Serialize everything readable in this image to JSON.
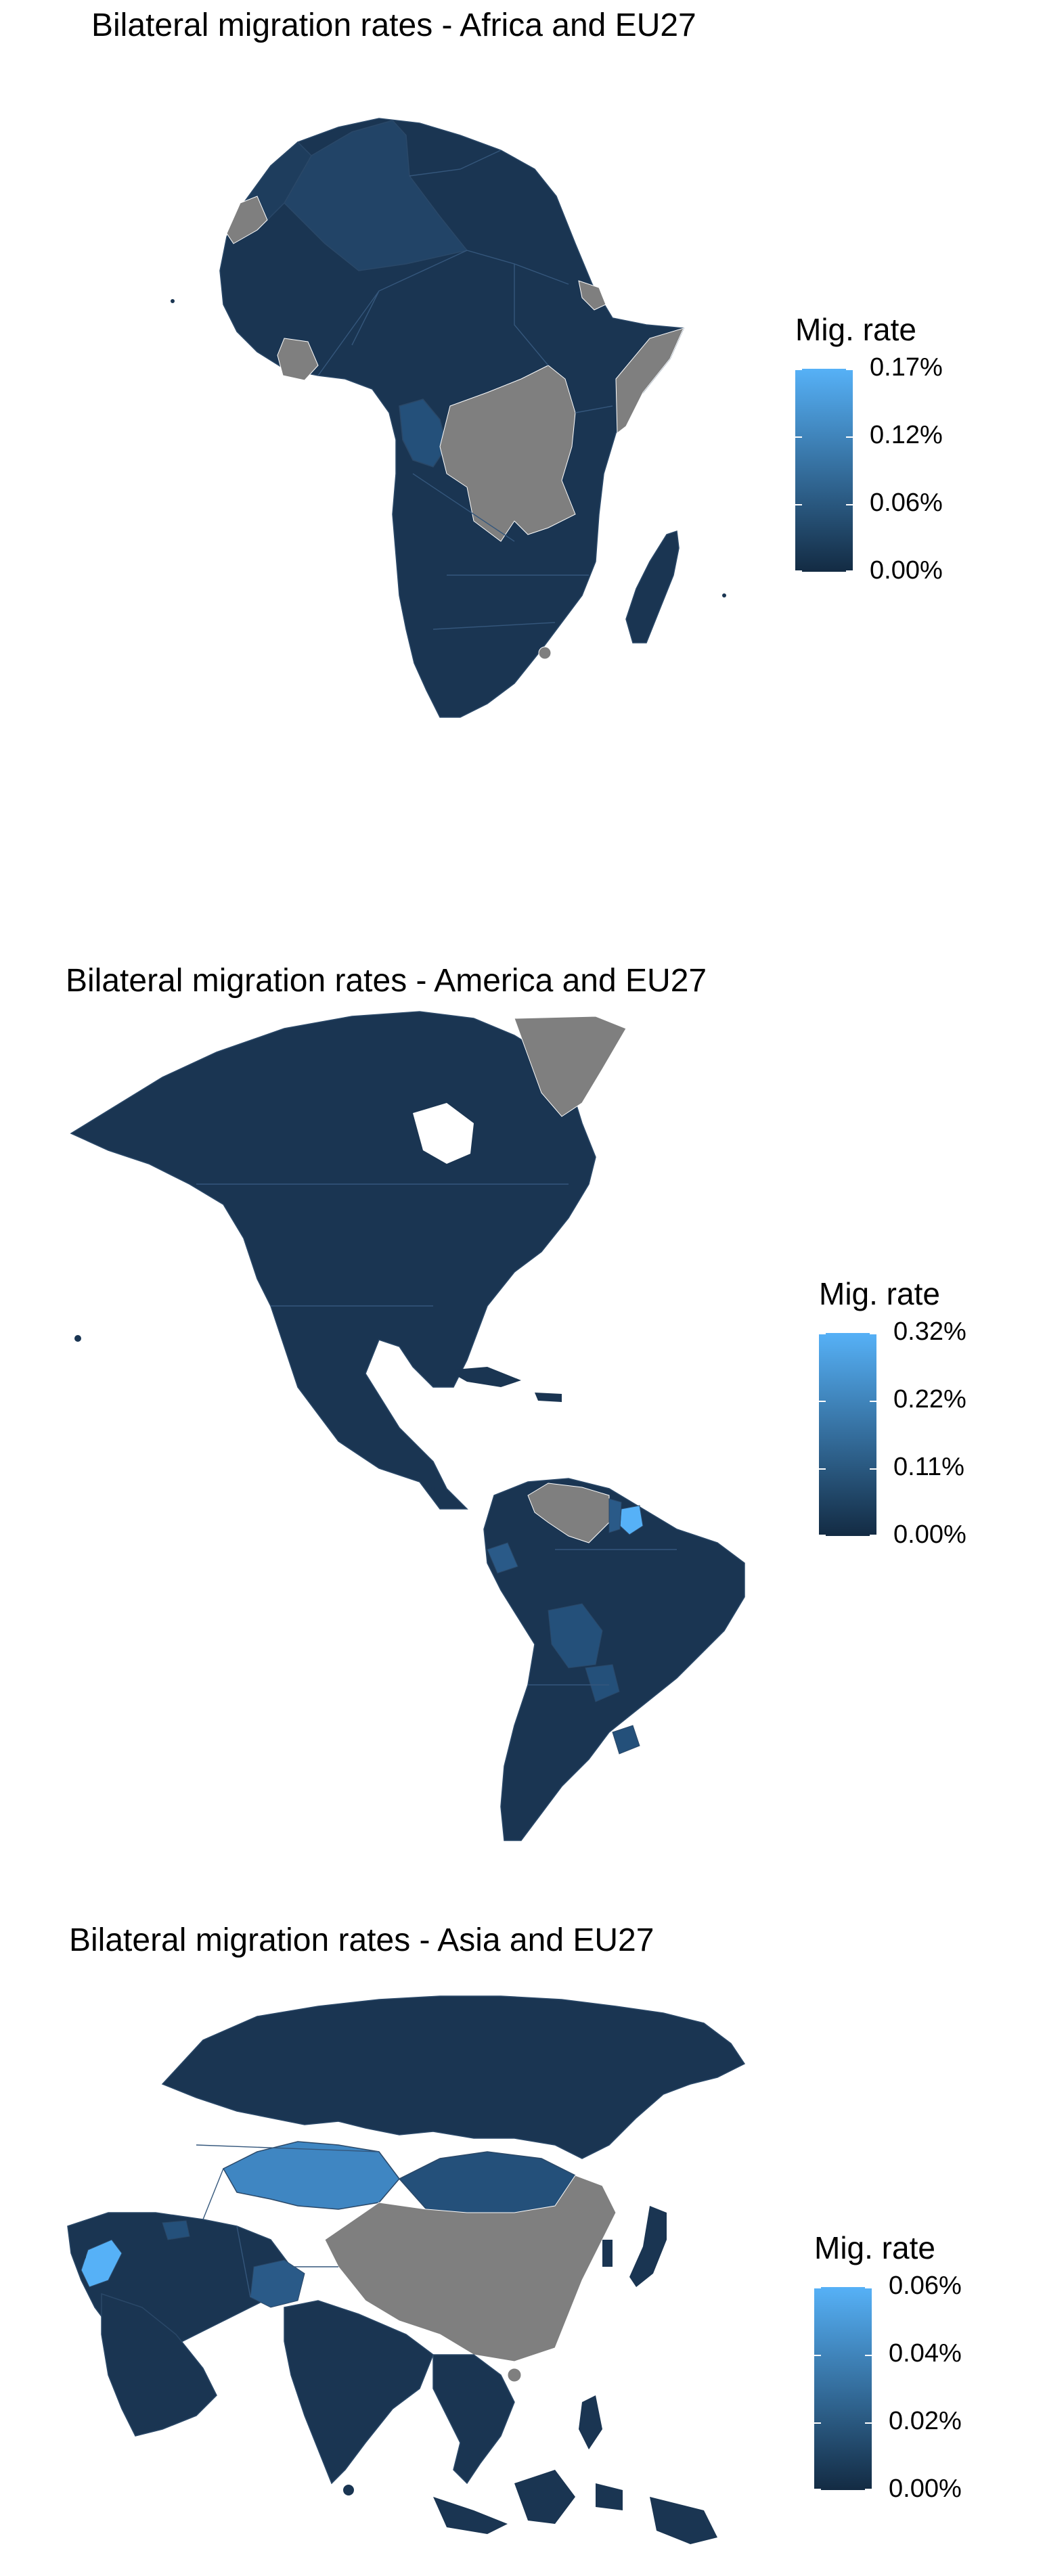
{
  "colors": {
    "low": "#132B43",
    "high": "#56B1F7",
    "no_data": "#7F7F7F",
    "background": "#FFFFFF"
  },
  "panels": [
    {
      "title": "Bilateral migration rates - Africa and EU27",
      "legend": {
        "title": "Mig. rate",
        "labels": [
          "0.17%",
          "0.12%",
          "0.06%",
          "0.00%"
        ],
        "max_value": 0.17
      }
    },
    {
      "title": "Bilateral migration rates - America and EU27",
      "legend": {
        "title": "Mig. rate",
        "labels": [
          "0.32%",
          "0.22%",
          "0.11%",
          "0.00%"
        ],
        "max_value": 0.32
      }
    },
    {
      "title": "Bilateral migration rates - Asia and EU27",
      "legend": {
        "title": "Mig. rate",
        "labels": [
          "0.06%",
          "0.04%",
          "0.02%",
          "0.00%"
        ],
        "max_value": 0.06
      }
    }
  ]
}
